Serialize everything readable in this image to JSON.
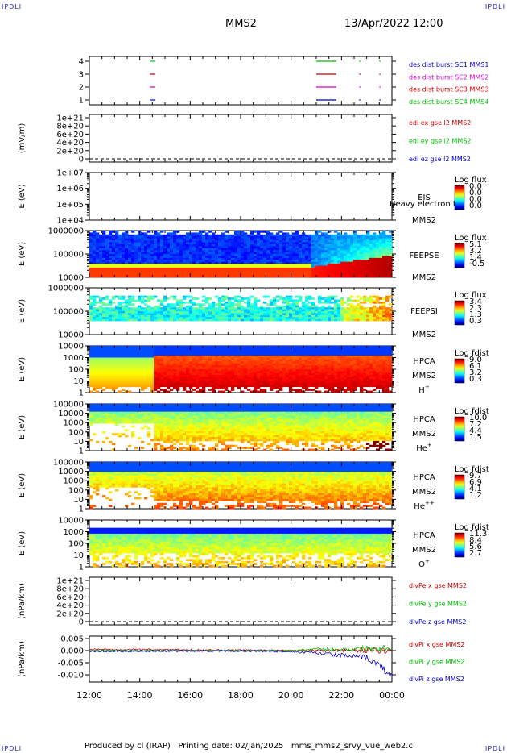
{
  "header": {
    "corner_label": "IPDLI",
    "spacecraft": "MMS2",
    "datetime": "13/Apr/2022 12:00"
  },
  "footer": {
    "text": "Produced by cl (IRAP)   Printing date: 02/Jan/2025   mms_mms2_srvy_vue_web2.cl"
  },
  "chart_data": [
    {
      "type": "line",
      "panel": "burst-availability",
      "yticks": [
        "4",
        "3",
        "2",
        "1"
      ],
      "legend": [
        {
          "name": "des dist burst SC1 MMS1",
          "color": "#0000cc"
        },
        {
          "name": "des dist burst SC2 MMS2",
          "color": "#cc00cc"
        },
        {
          "name": "des dist burst SC3 MMS3",
          "color": "#cc0000"
        },
        {
          "name": "des dist burst SC4 MMS4",
          "color": "#00bb00"
        }
      ],
      "intervals_hours": [
        [
          14.4,
          14.6
        ],
        [
          21.0,
          21.8
        ],
        [
          22.7,
          22.75
        ],
        [
          23.5,
          23.55
        ]
      ]
    },
    {
      "type": "line",
      "panel": "edi-electric-field",
      "ylabel": "(mV/m)",
      "yticks": [
        "1e+21",
        "8e+20",
        "6e+20",
        "4e+20",
        "2e+20",
        "0"
      ],
      "legend": [
        {
          "name": "edi ex gse l2 MMS2",
          "color": "#cc0000"
        },
        {
          "name": "edi ey gse l2 MMS2",
          "color": "#00bb00"
        },
        {
          "name": "edi ez gse l2 MMS2",
          "color": "#0000cc"
        }
      ]
    },
    {
      "type": "heatmap",
      "panel": "eis",
      "ylabel": "E (eV)",
      "yticks": [
        "1e+07",
        "1e+06",
        "1e+05",
        "1e+04"
      ],
      "instrument": [
        "EIS",
        "MMS2"
      ],
      "overlay_text": "Heavy electron tof",
      "colorbar_title": "Log flux",
      "colorbar_ticks": [
        "0.0",
        "0.0",
        "0.0",
        "0.0"
      ]
    },
    {
      "type": "heatmap",
      "panel": "feepse",
      "ylabel": "E (eV)",
      "yticks": [
        "1000000",
        "100000",
        "10000"
      ],
      "instrument": [
        "FEEPSE",
        "MMS2"
      ],
      "colorbar_title": "Log flux",
      "colorbar_ticks": [
        "5.1",
        "3.2",
        "1.4",
        "-0.5"
      ]
    },
    {
      "type": "heatmap",
      "panel": "feepsi",
      "ylabel": "E (eV)",
      "yticks": [
        "1000000",
        "100000",
        "10000"
      ],
      "instrument": [
        "FEEPSI",
        "MMS2"
      ],
      "colorbar_title": "Log flux",
      "colorbar_ticks": [
        "3.4",
        "2.3",
        "1.3",
        "0.3"
      ]
    },
    {
      "type": "heatmap",
      "panel": "hpca-h",
      "ylabel": "E (eV)",
      "yticks": [
        "10000",
        "1000",
        "100",
        "10",
        "1"
      ],
      "instrument": [
        "HPCA",
        "MMS2"
      ],
      "species": "H",
      "species_sup": "+",
      "colorbar_title": "Log fdist",
      "colorbar_ticks": [
        "9.0",
        "6.1",
        "3.2",
        "0.3"
      ]
    },
    {
      "type": "heatmap",
      "panel": "hpca-he",
      "ylabel": "E (eV)",
      "yticks": [
        "100000",
        "10000",
        "1000",
        "100",
        "10",
        "1"
      ],
      "instrument": [
        "HPCA",
        "MMS2"
      ],
      "species": "He",
      "species_sup": "+",
      "colorbar_title": "Log fdist",
      "colorbar_ticks": [
        "10.0",
        "7.2",
        "4.4",
        "1.5"
      ]
    },
    {
      "type": "heatmap",
      "panel": "hpca-hepp",
      "ylabel": "E (eV)",
      "yticks": [
        "100000",
        "10000",
        "1000",
        "100",
        "10",
        "1"
      ],
      "instrument": [
        "HPCA",
        "MMS2"
      ],
      "species": "He",
      "species_sup": "++",
      "colorbar_title": "Log fdist",
      "colorbar_ticks": [
        "9.7",
        "6.9",
        "4.1",
        "1.2"
      ]
    },
    {
      "type": "heatmap",
      "panel": "hpca-o",
      "ylabel": "E (eV)",
      "yticks": [
        "10000",
        "1000",
        "100",
        "10",
        "1"
      ],
      "instrument": [
        "HPCA",
        "MMS2"
      ],
      "species": "O",
      "species_sup": "+",
      "colorbar_title": "Log fdist",
      "colorbar_ticks": [
        "11.3",
        "8.4",
        "5.6",
        "2.7"
      ]
    },
    {
      "type": "line",
      "panel": "divpe",
      "ylabel": "(nPa/km)",
      "yticks": [
        "1e+21",
        "8e+20",
        "6e+20",
        "4e+20",
        "2e+20",
        "0"
      ],
      "legend": [
        {
          "name": "divPe x gse MMS2",
          "color": "#cc0000"
        },
        {
          "name": "divPe y gse MMS2",
          "color": "#00bb00"
        },
        {
          "name": "divPe z gse MMS2",
          "color": "#0000cc"
        }
      ]
    },
    {
      "type": "line",
      "panel": "divpi",
      "ylabel": "(nPa/km)",
      "yticks": [
        "0.005",
        "0.000",
        "-0.005",
        "-0.010"
      ],
      "ylim": [
        -0.013,
        0.006
      ],
      "legend": [
        {
          "name": "divPi x gse MMS2",
          "color": "#cc0000"
        },
        {
          "name": "divPi y gse MMS2",
          "color": "#00bb00"
        },
        {
          "name": "divPi z gse MMS2",
          "color": "#0000cc"
        }
      ],
      "x": [
        12,
        14,
        16,
        18,
        20,
        21,
        22,
        23,
        23.5,
        24
      ],
      "series": [
        {
          "name": "divPi x gse MMS2",
          "values": [
            0.0005,
            0.0005,
            0.0003,
            0.0002,
            0.0002,
            0.0,
            0.0002,
            0.0003,
            0.0002,
            0.0
          ]
        },
        {
          "name": "divPi y gse MMS2",
          "values": [
            0.0,
            0.0,
            0.0,
            0.0,
            0.0,
            0.0005,
            0.0005,
            0.001,
            0.001,
            0.0015
          ]
        },
        {
          "name": "divPi z gse MMS2",
          "values": [
            -0.0003,
            -0.0003,
            -0.0002,
            -0.0002,
            -0.0005,
            -0.001,
            -0.002,
            -0.003,
            -0.006,
            -0.011
          ]
        }
      ]
    }
  ],
  "time_axis": {
    "ticks": [
      "12:00",
      "14:00",
      "16:00",
      "18:00",
      "20:00",
      "22:00",
      "00:00"
    ]
  }
}
